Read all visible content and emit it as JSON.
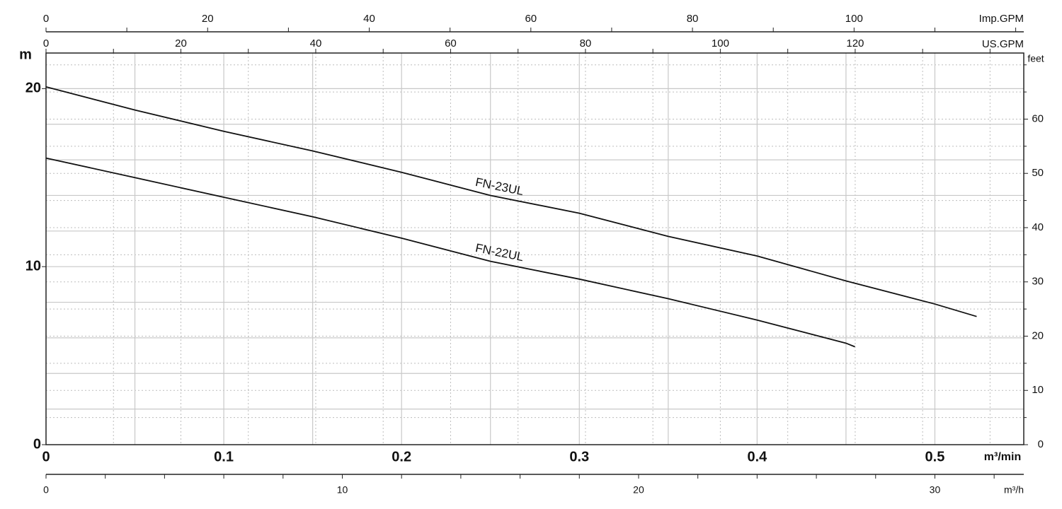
{
  "chart_data": {
    "type": "line",
    "xlabel": "m³/min",
    "ylabel": "m",
    "xlim": [
      0,
      0.55
    ],
    "ylim": [
      0,
      22
    ],
    "xticks": [
      0,
      0.1,
      0.2,
      0.3,
      0.4,
      0.5
    ],
    "yticks": [
      0,
      10,
      20
    ],
    "xgrid": [
      0.05,
      0.1,
      0.15,
      0.2,
      0.25,
      0.3,
      0.35,
      0.4,
      0.45,
      0.5
    ],
    "ygrid": [
      2,
      4,
      6,
      8,
      10,
      12,
      14,
      16,
      18,
      20
    ],
    "series": [
      {
        "name": "FN-23UL",
        "color": "#111111",
        "x": [
          0,
          0.05,
          0.1,
          0.15,
          0.2,
          0.25,
          0.3,
          0.35,
          0.4,
          0.45,
          0.5,
          0.5235
        ],
        "values": [
          20.1,
          18.8,
          17.6,
          16.5,
          15.3,
          14.0,
          13.0,
          11.7,
          10.6,
          9.2,
          7.9,
          7.2
        ]
      },
      {
        "name": "FN-22UL",
        "color": "#111111",
        "x": [
          0,
          0.05,
          0.1,
          0.15,
          0.2,
          0.25,
          0.3,
          0.35,
          0.4,
          0.45,
          0.455
        ],
        "values": [
          16.1,
          15.0,
          13.9,
          12.8,
          11.6,
          10.3,
          9.3,
          8.2,
          7.0,
          5.7,
          5.5
        ]
      }
    ],
    "top_axes": [
      {
        "label": "Imp.GPM",
        "lim": [
          0,
          121
        ],
        "ticks": [
          0,
          20,
          40,
          60,
          80,
          100
        ],
        "minor_ticks": [
          10,
          30,
          50,
          70,
          90,
          110,
          120
        ]
      },
      {
        "label": "US.GPM",
        "lim": [
          0,
          145
        ],
        "ticks": [
          0,
          20,
          40,
          60,
          80,
          100,
          120
        ],
        "minor_ticks": [
          10,
          30,
          50,
          70,
          90,
          110,
          130,
          140
        ]
      }
    ],
    "right_axis": {
      "label": "feet",
      "lim": [
        0,
        72.18
      ],
      "ticks": [
        0,
        10,
        20,
        30,
        40,
        50,
        60
      ],
      "minor_ticks": [
        5,
        15,
        25,
        35,
        45,
        55,
        65,
        70
      ]
    },
    "bottom_axis": {
      "label": "m³/h",
      "lim": [
        0,
        33
      ],
      "ticks": [
        0,
        10,
        20,
        30
      ],
      "minor_ticks": [
        2,
        4,
        6,
        8,
        12,
        14,
        16,
        18,
        22,
        24,
        26,
        28,
        32
      ]
    }
  }
}
